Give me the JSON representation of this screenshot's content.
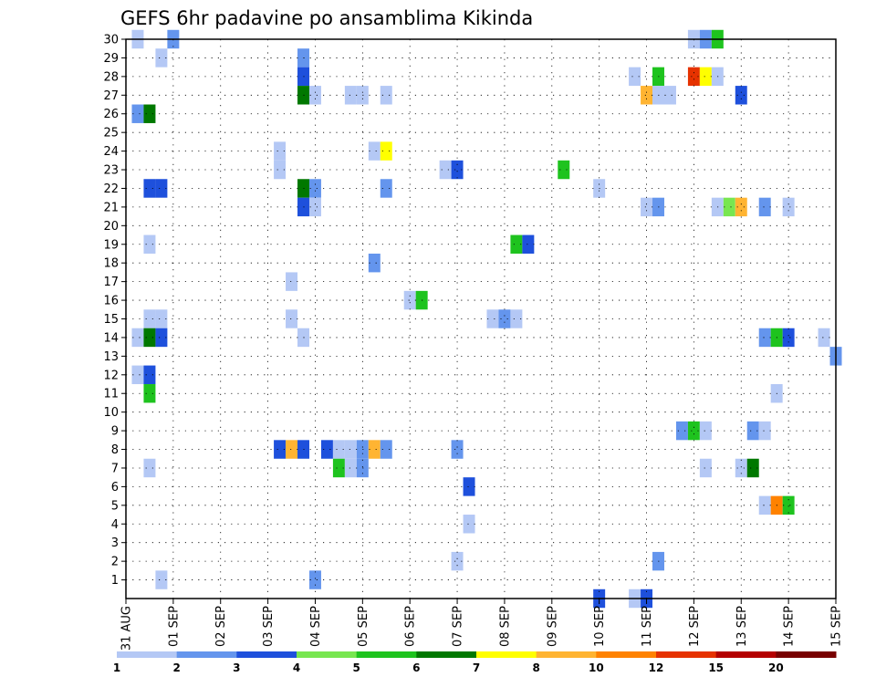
{
  "chart_data": {
    "type": "heatmap",
    "title": "GEFS 6hr padavine po ansamblima Kikinda",
    "x_tick_labels": [
      "31 AUG",
      "01 SEP",
      "02 SEP",
      "03 SEP",
      "04 SEP",
      "05 SEP",
      "06 SEP",
      "07 SEP",
      "08 SEP",
      "09 SEP",
      "10 SEP",
      "11 SEP",
      "12 SEP",
      "13 SEP",
      "14 SEP",
      "15 SEP"
    ],
    "x_range_steps": [
      0,
      60
    ],
    "x_step_hours": 6,
    "y_range": [
      0,
      30
    ],
    "y_ticks": [
      1,
      2,
      3,
      4,
      5,
      6,
      7,
      8,
      9,
      10,
      11,
      12,
      13,
      14,
      15,
      16,
      17,
      18,
      19,
      20,
      21,
      22,
      23,
      24,
      25,
      26,
      27,
      28,
      29,
      30
    ],
    "grid": true,
    "scale": {
      "labels": [
        "1",
        "2",
        "3",
        "4",
        "5",
        "6",
        "7",
        "8",
        "10",
        "12",
        "15",
        "20"
      ],
      "colors": [
        "#b4c8f5",
        "#6495ed",
        "#1e50dc",
        "#78e650",
        "#1ec31e",
        "#007800",
        "#ffff00",
        "#ffb432",
        "#ff8200",
        "#e63200",
        "#b40000",
        "#780000"
      ]
    },
    "cells": [
      [
        1,
        30,
        0
      ],
      [
        4,
        30,
        1
      ],
      [
        3,
        29,
        0
      ],
      [
        15,
        29,
        1
      ],
      [
        48,
        30,
        0
      ],
      [
        49,
        30,
        1
      ],
      [
        50,
        30,
        4
      ],
      [
        15,
        28,
        2
      ],
      [
        43,
        28,
        0
      ],
      [
        45,
        28,
        4
      ],
      [
        48,
        28,
        9
      ],
      [
        49,
        28,
        6
      ],
      [
        50,
        28,
        0
      ],
      [
        15,
        27,
        5
      ],
      [
        16,
        27,
        0
      ],
      [
        19,
        27,
        0
      ],
      [
        20,
        27,
        0
      ],
      [
        22,
        27,
        0
      ],
      [
        44,
        27,
        7
      ],
      [
        45,
        27,
        0
      ],
      [
        46,
        27,
        0
      ],
      [
        52,
        27,
        2
      ],
      [
        1,
        26,
        1
      ],
      [
        2,
        26,
        5
      ],
      [
        13,
        24,
        0
      ],
      [
        21,
        24,
        0
      ],
      [
        22,
        24,
        6
      ],
      [
        13,
        23,
        0
      ],
      [
        27,
        23,
        0
      ],
      [
        28,
        23,
        2
      ],
      [
        37,
        23,
        4
      ],
      [
        2,
        22,
        2
      ],
      [
        3,
        22,
        2
      ],
      [
        15,
        22,
        5
      ],
      [
        16,
        22,
        1
      ],
      [
        22,
        22,
        1
      ],
      [
        40,
        22,
        0
      ],
      [
        15,
        21,
        2
      ],
      [
        16,
        21,
        0
      ],
      [
        44,
        21,
        0
      ],
      [
        45,
        21,
        1
      ],
      [
        50,
        21,
        0
      ],
      [
        51,
        21,
        3
      ],
      [
        52,
        21,
        7
      ],
      [
        54,
        21,
        1
      ],
      [
        56,
        21,
        0
      ],
      [
        2,
        19,
        0
      ],
      [
        33,
        19,
        4
      ],
      [
        34,
        19,
        2
      ],
      [
        21,
        18,
        1
      ],
      [
        14,
        17,
        0
      ],
      [
        24,
        16,
        0
      ],
      [
        25,
        16,
        4
      ],
      [
        2,
        15,
        0
      ],
      [
        3,
        15,
        0
      ],
      [
        14,
        15,
        0
      ],
      [
        31,
        15,
        0
      ],
      [
        32,
        15,
        1
      ],
      [
        33,
        15,
        0
      ],
      [
        1,
        14,
        0
      ],
      [
        2,
        14,
        5
      ],
      [
        3,
        14,
        2
      ],
      [
        15,
        14,
        0
      ],
      [
        54,
        14,
        1
      ],
      [
        55,
        14,
        4
      ],
      [
        56,
        14,
        2
      ],
      [
        59,
        14,
        0
      ],
      [
        60,
        13,
        1
      ],
      [
        1,
        12,
        0
      ],
      [
        2,
        12,
        2
      ],
      [
        2,
        11,
        4
      ],
      [
        55,
        11,
        0
      ],
      [
        47,
        9,
        1
      ],
      [
        48,
        9,
        4
      ],
      [
        49,
        9,
        0
      ],
      [
        53,
        9,
        1
      ],
      [
        54,
        9,
        0
      ],
      [
        13,
        8,
        2
      ],
      [
        14,
        8,
        7
      ],
      [
        15,
        8,
        2
      ],
      [
        17,
        8,
        2
      ],
      [
        18,
        8,
        0
      ],
      [
        19,
        8,
        0
      ],
      [
        20,
        8,
        1
      ],
      [
        21,
        8,
        7
      ],
      [
        22,
        8,
        1
      ],
      [
        28,
        8,
        1
      ],
      [
        2,
        7,
        0
      ],
      [
        18,
        7,
        4
      ],
      [
        19,
        7,
        0
      ],
      [
        20,
        7,
        1
      ],
      [
        49,
        7,
        0
      ],
      [
        52,
        7,
        0
      ],
      [
        53,
        7,
        5
      ],
      [
        29,
        6,
        2
      ],
      [
        54,
        5,
        0
      ],
      [
        55,
        5,
        8
      ],
      [
        56,
        5,
        4
      ],
      [
        29,
        4,
        0
      ],
      [
        28,
        2,
        0
      ],
      [
        45,
        2,
        1
      ],
      [
        3,
        1,
        0
      ],
      [
        16,
        1,
        1
      ],
      [
        40,
        0,
        2
      ],
      [
        43,
        0,
        0
      ],
      [
        44,
        0,
        2
      ]
    ]
  }
}
